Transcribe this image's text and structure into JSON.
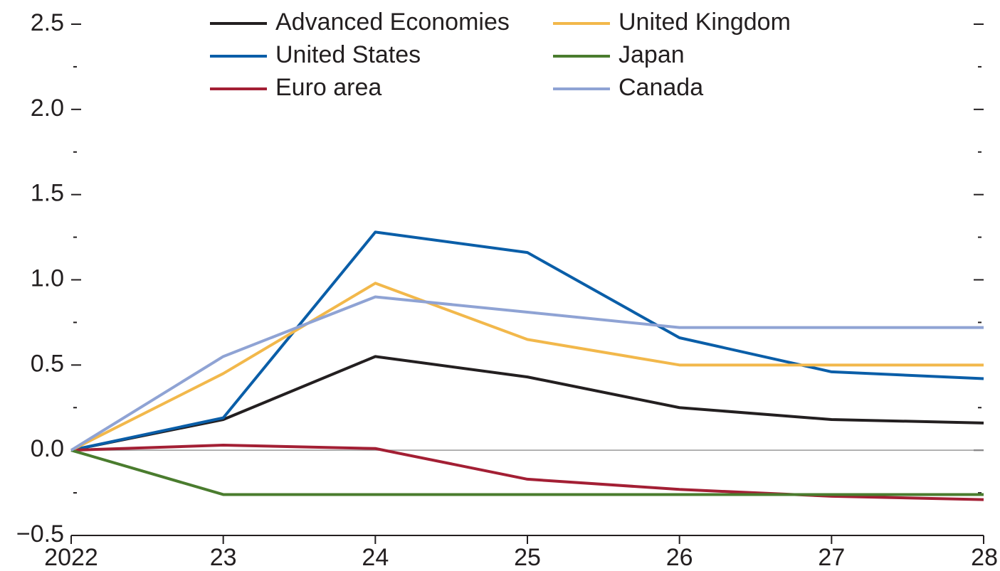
{
  "chart_data": {
    "type": "line",
    "categories": [
      "2022",
      "23",
      "24",
      "25",
      "26",
      "27",
      "28"
    ],
    "series": [
      {
        "name": "Advanced Economies",
        "color": "#231f20",
        "values": [
          0,
          0.18,
          0.55,
          0.43,
          0.25,
          0.18,
          0.16
        ]
      },
      {
        "name": "United States",
        "color": "#0a5ea8",
        "values": [
          0,
          0.19,
          1.28,
          1.16,
          0.66,
          0.46,
          0.42
        ]
      },
      {
        "name": "Euro area",
        "color": "#a31f34",
        "values": [
          0,
          0.03,
          0.01,
          -0.17,
          -0.23,
          -0.27,
          -0.29
        ]
      },
      {
        "name": "United Kingdom",
        "color": "#f2b84b",
        "values": [
          0,
          0.45,
          0.98,
          0.65,
          0.5,
          0.5,
          0.5
        ]
      },
      {
        "name": "Japan",
        "color": "#4a7c2e",
        "values": [
          0,
          -0.26,
          -0.26,
          -0.26,
          -0.26,
          -0.26,
          -0.26
        ]
      },
      {
        "name": "Canada",
        "color": "#8fa3d4",
        "values": [
          0,
          0.55,
          0.9,
          0.81,
          0.72,
          0.72,
          0.72
        ]
      }
    ],
    "ylim": [
      -0.5,
      2.5
    ],
    "yticks": [
      {
        "value": -0.5,
        "label": "−0.5"
      },
      {
        "value": 0,
        "label": "0.0"
      },
      0.5,
      {
        "value": 1,
        "label": "1.0"
      },
      1.5,
      {
        "value": 2,
        "label": "2.0"
      },
      2.5
    ],
    "yminorticks": [
      -0.25,
      0.25,
      0.75,
      1.25,
      1.75,
      2.25
    ],
    "zero_line": true,
    "legend": "top"
  }
}
